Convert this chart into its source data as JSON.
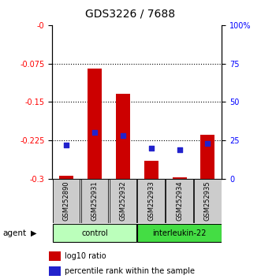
{
  "title": "GDS3226 / 7688",
  "samples": [
    "GSM252890",
    "GSM252931",
    "GSM252932",
    "GSM252933",
    "GSM252934",
    "GSM252935"
  ],
  "groups": [
    "control",
    "control",
    "control",
    "interleukin-22",
    "interleukin-22",
    "interleukin-22"
  ],
  "log10_ratio": [
    -0.295,
    -0.085,
    -0.135,
    -0.265,
    -0.298,
    -0.215
  ],
  "percentile_rank": [
    22,
    30,
    28,
    20,
    19,
    23
  ],
  "ylim_left": [
    -0.3,
    0
  ],
  "ylim_right": [
    100,
    0
  ],
  "yticks_left": [
    0,
    -0.075,
    -0.15,
    -0.225,
    -0.3
  ],
  "yticks_right": [
    0,
    25,
    50,
    75,
    100
  ],
  "left_tick_labels": [
    "-0",
    "-0.075",
    "-0.15",
    "-0.225",
    "-0.3"
  ],
  "right_tick_labels": [
    "0",
    "25",
    "50",
    "75",
    "100%"
  ],
  "bar_color": "#cc0000",
  "dot_color": "#2222cc",
  "control_color": "#bbffbb",
  "interleukin_color": "#44dd44",
  "legend_bar_label": "log10 ratio",
  "legend_dot_label": "percentile rank within the sample",
  "label_bg_color": "#cccccc"
}
